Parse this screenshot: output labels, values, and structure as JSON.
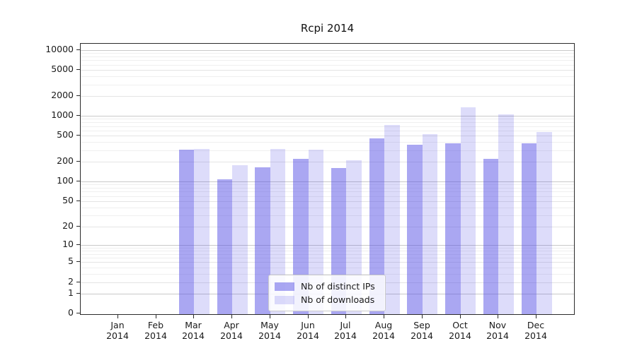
{
  "title": "Rcpi 2014",
  "chart_data": {
    "type": "bar",
    "title": "Rcpi 2014",
    "categories": [
      "Jan 2014",
      "Feb 2014",
      "Mar 2014",
      "Apr 2014",
      "May 2014",
      "Jun 2014",
      "Jul 2014",
      "Aug 2014",
      "Sep 2014",
      "Oct 2014",
      "Nov 2014",
      "Dec 2014"
    ],
    "series": [
      {
        "name": "Nb of distinct IPs",
        "color_hex": "#a9a6f2",
        "fill": "rgba(85,80,230,0.5)",
        "values": [
          0,
          0,
          291,
          102,
          156,
          211,
          153,
          432,
          346,
          364,
          211,
          361
        ]
      },
      {
        "name": "Nb of downloads",
        "color_hex": "#dcdaf8",
        "fill": "rgba(85,80,230,0.2)",
        "values": [
          0,
          0,
          299,
          168,
          297,
          290,
          200,
          690,
          500,
          1290,
          1000,
          540
        ]
      }
    ],
    "y_scale": "log10(value+1)",
    "y_tick_labels": [
      0,
      1,
      2,
      5,
      10,
      20,
      50,
      100,
      200,
      500,
      1000,
      2000,
      5000,
      10000
    ],
    "ylim": [
      0,
      11500
    ],
    "xlabel": "",
    "ylabel": "",
    "grid": "major+minor horizontal",
    "legend_position": "lower-center"
  },
  "colors": {
    "background": "#ffffff",
    "spine": "#2b2b2b",
    "grid_major": "#c9c9c9",
    "grid_mid": "#e4e4e4",
    "grid_minor": "#efefef",
    "text": "#1a1a1a",
    "legend_border": "#cccccc"
  }
}
